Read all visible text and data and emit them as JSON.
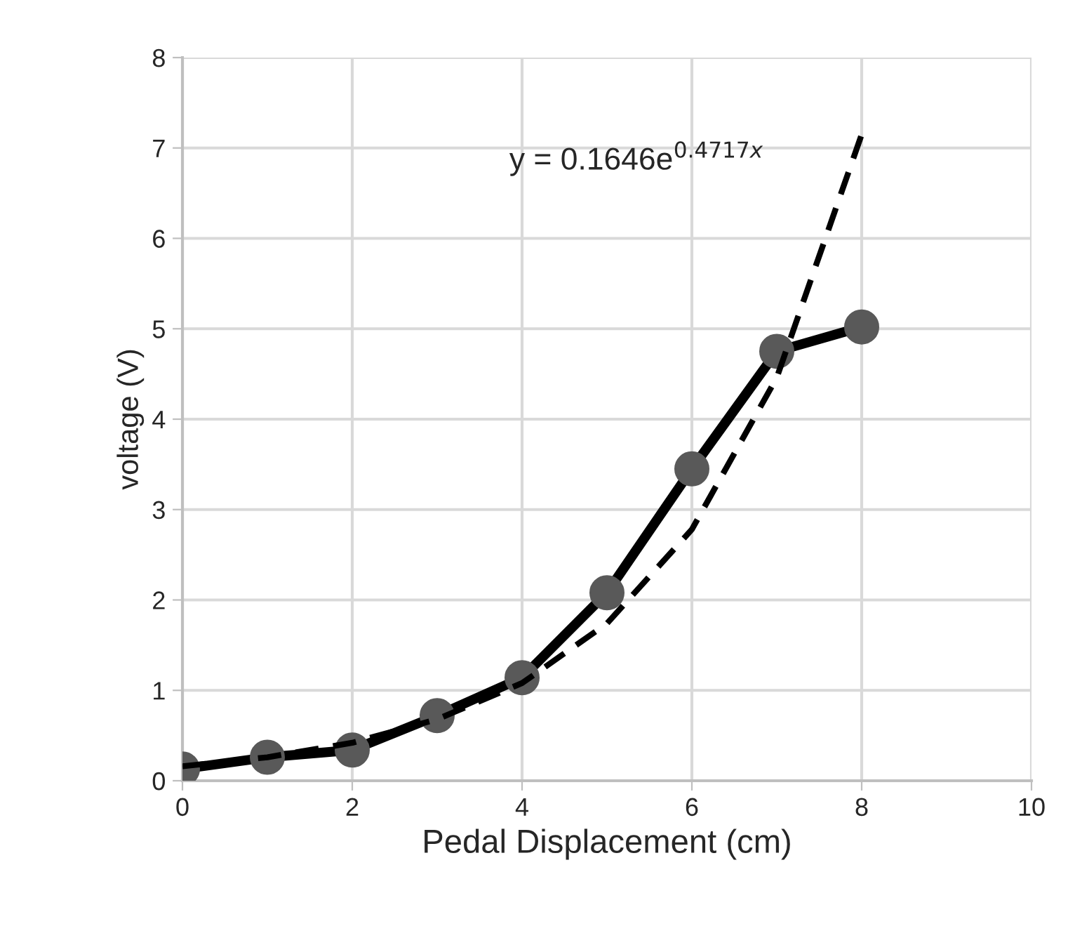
{
  "chart_data": {
    "type": "line",
    "xlabel": "Pedal Displacement (cm)",
    "ylabel": "voltage (V)",
    "xlim": [
      0,
      10
    ],
    "xticks": [
      0,
      2,
      4,
      6,
      8,
      10
    ],
    "ylim": [
      0,
      8
    ],
    "yticks": [
      0,
      1,
      2,
      3,
      4,
      5,
      6,
      7,
      8
    ],
    "grid": true,
    "legend": false,
    "series": [
      {
        "color": "#000000",
        "marker": "circle",
        "line_style": "solid",
        "x": [
          0,
          1,
          2,
          3,
          4,
          5,
          6,
          7,
          8
        ],
        "values": [
          0.13,
          0.26,
          0.34,
          0.72,
          1.14,
          2.08,
          3.45,
          4.75,
          5.02
        ]
      },
      {
        "color": "#000000",
        "marker": "none",
        "line_style": "dashed",
        "x": [
          0,
          1,
          2,
          3,
          4,
          5,
          6,
          7,
          8
        ],
        "values": [
          0.16,
          0.26,
          0.42,
          0.68,
          1.08,
          1.74,
          2.78,
          4.46,
          7.15
        ]
      }
    ],
    "annotations": [
      "y = 0.1646e$^{0.4717x}$"
    ]
  }
}
